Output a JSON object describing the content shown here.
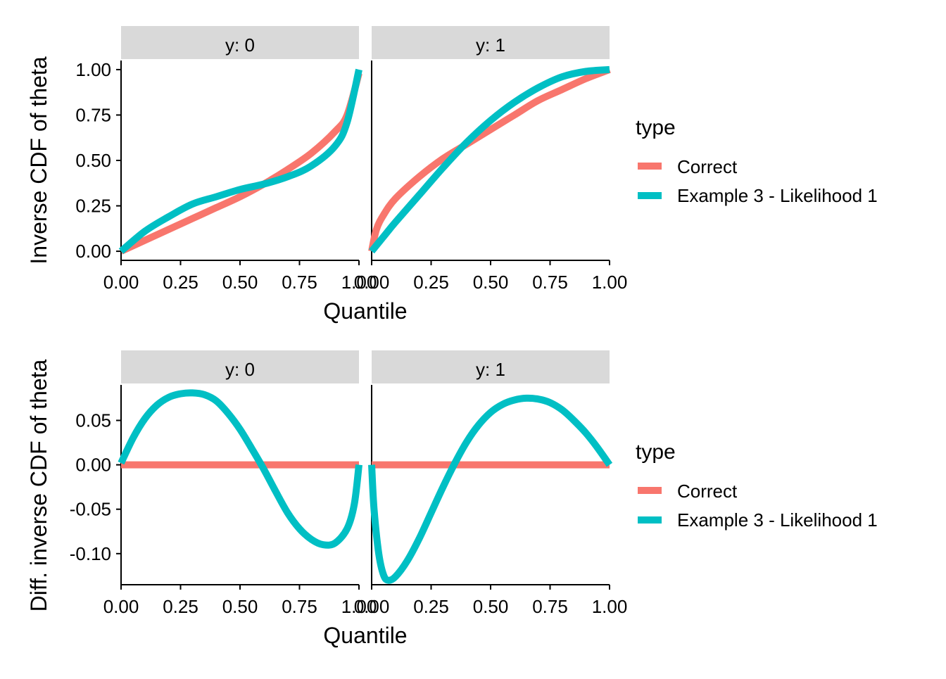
{
  "chart_data": [
    {
      "type": "line",
      "xlabel": "Quantile",
      "ylabel": "Inverse CDF of theta",
      "xlim": [
        0,
        1
      ],
      "ylim": [
        -0.05,
        1.05
      ],
      "x_ticks": [
        "0.00",
        "0.25",
        "0.50",
        "0.75",
        "1.00"
      ],
      "y_ticks": [
        "0.00",
        "0.25",
        "0.50",
        "0.75",
        "1.00"
      ],
      "grid": false,
      "facets": [
        {
          "label": "y: 0",
          "series": [
            {
              "name": "Correct",
              "x": [
                0,
                0.1,
                0.2,
                0.3,
                0.4,
                0.5,
                0.6,
                0.7,
                0.8,
                0.9,
                0.95,
                1.0
              ],
              "values": [
                0.0,
                0.06,
                0.12,
                0.18,
                0.24,
                0.3,
                0.37,
                0.45,
                0.54,
                0.66,
                0.75,
                0.98
              ]
            },
            {
              "name": "Example 3 - Likelihood 1",
              "x": [
                0,
                0.1,
                0.2,
                0.3,
                0.4,
                0.5,
                0.6,
                0.7,
                0.8,
                0.9,
                0.95,
                1.0
              ],
              "values": [
                0.0,
                0.11,
                0.19,
                0.26,
                0.3,
                0.34,
                0.37,
                0.41,
                0.47,
                0.58,
                0.71,
                1.0
              ]
            }
          ]
        },
        {
          "label": "y: 1",
          "series": [
            {
              "name": "Correct",
              "x": [
                0,
                0.02,
                0.05,
                0.1,
                0.2,
                0.3,
                0.4,
                0.5,
                0.6,
                0.7,
                0.8,
                0.9,
                1.0
              ],
              "values": [
                0.0,
                0.12,
                0.2,
                0.29,
                0.41,
                0.51,
                0.59,
                0.67,
                0.75,
                0.83,
                0.89,
                0.95,
                1.0
              ]
            },
            {
              "name": "Example 3 - Likelihood 1",
              "x": [
                0,
                0.05,
                0.1,
                0.2,
                0.3,
                0.4,
                0.5,
                0.6,
                0.7,
                0.8,
                0.9,
                1.0
              ],
              "values": [
                0.0,
                0.08,
                0.16,
                0.31,
                0.46,
                0.6,
                0.72,
                0.82,
                0.9,
                0.96,
                0.99,
                1.0
              ]
            }
          ]
        }
      ],
      "legend": {
        "title": "type",
        "entries": [
          "Correct",
          "Example 3 - Likelihood 1"
        ],
        "position": "right"
      }
    },
    {
      "type": "line",
      "xlabel": "Quantile",
      "ylabel": "Diff. inverse CDF of theta",
      "xlim": [
        0,
        1
      ],
      "ylim": [
        -0.135,
        0.09
      ],
      "x_ticks": [
        "0.00",
        "0.25",
        "0.50",
        "0.75",
        "1.00"
      ],
      "y_ticks": [
        "-0.10",
        "-0.05",
        "0.00",
        "0.05"
      ],
      "grid": false,
      "facets": [
        {
          "label": "y: 0",
          "series": [
            {
              "name": "Correct",
              "x": [
                0,
                1.0
              ],
              "values": [
                0.0,
                0.0
              ]
            },
            {
              "name": "Example 3 - Likelihood 1",
              "x": [
                0,
                0.05,
                0.1,
                0.15,
                0.2,
                0.25,
                0.3,
                0.35,
                0.4,
                0.45,
                0.5,
                0.55,
                0.6,
                0.65,
                0.7,
                0.75,
                0.8,
                0.85,
                0.9,
                0.95,
                0.98,
                1.0
              ],
              "values": [
                0.002,
                0.03,
                0.052,
                0.067,
                0.076,
                0.08,
                0.081,
                0.079,
                0.072,
                0.058,
                0.04,
                0.018,
                -0.005,
                -0.03,
                -0.054,
                -0.072,
                -0.084,
                -0.09,
                -0.088,
                -0.072,
                -0.045,
                0.0
              ]
            }
          ]
        },
        {
          "label": "y: 1",
          "series": [
            {
              "name": "Correct",
              "x": [
                0,
                1.0
              ],
              "values": [
                0.0,
                0.0
              ]
            },
            {
              "name": "Example 3 - Likelihood 1",
              "x": [
                0,
                0.01,
                0.03,
                0.05,
                0.07,
                0.1,
                0.15,
                0.2,
                0.25,
                0.3,
                0.35,
                0.4,
                0.45,
                0.5,
                0.55,
                0.6,
                0.65,
                0.7,
                0.75,
                0.8,
                0.85,
                0.9,
                0.95,
                1.0
              ],
              "values": [
                0.0,
                -0.05,
                -0.1,
                -0.124,
                -0.13,
                -0.126,
                -0.108,
                -0.083,
                -0.054,
                -0.025,
                0.002,
                0.026,
                0.045,
                0.059,
                0.068,
                0.073,
                0.075,
                0.074,
                0.07,
                0.062,
                0.05,
                0.036,
                0.019,
                0.0
              ]
            }
          ]
        }
      ],
      "legend": {
        "title": "type",
        "entries": [
          "Correct",
          "Example 3 - Likelihood 1"
        ],
        "position": "right"
      }
    }
  ],
  "colors": {
    "Correct": "#F8766D",
    "Example 3 - Likelihood 1": "#00BFC4",
    "strip": "#D9D9D9",
    "axis": "#000000"
  }
}
